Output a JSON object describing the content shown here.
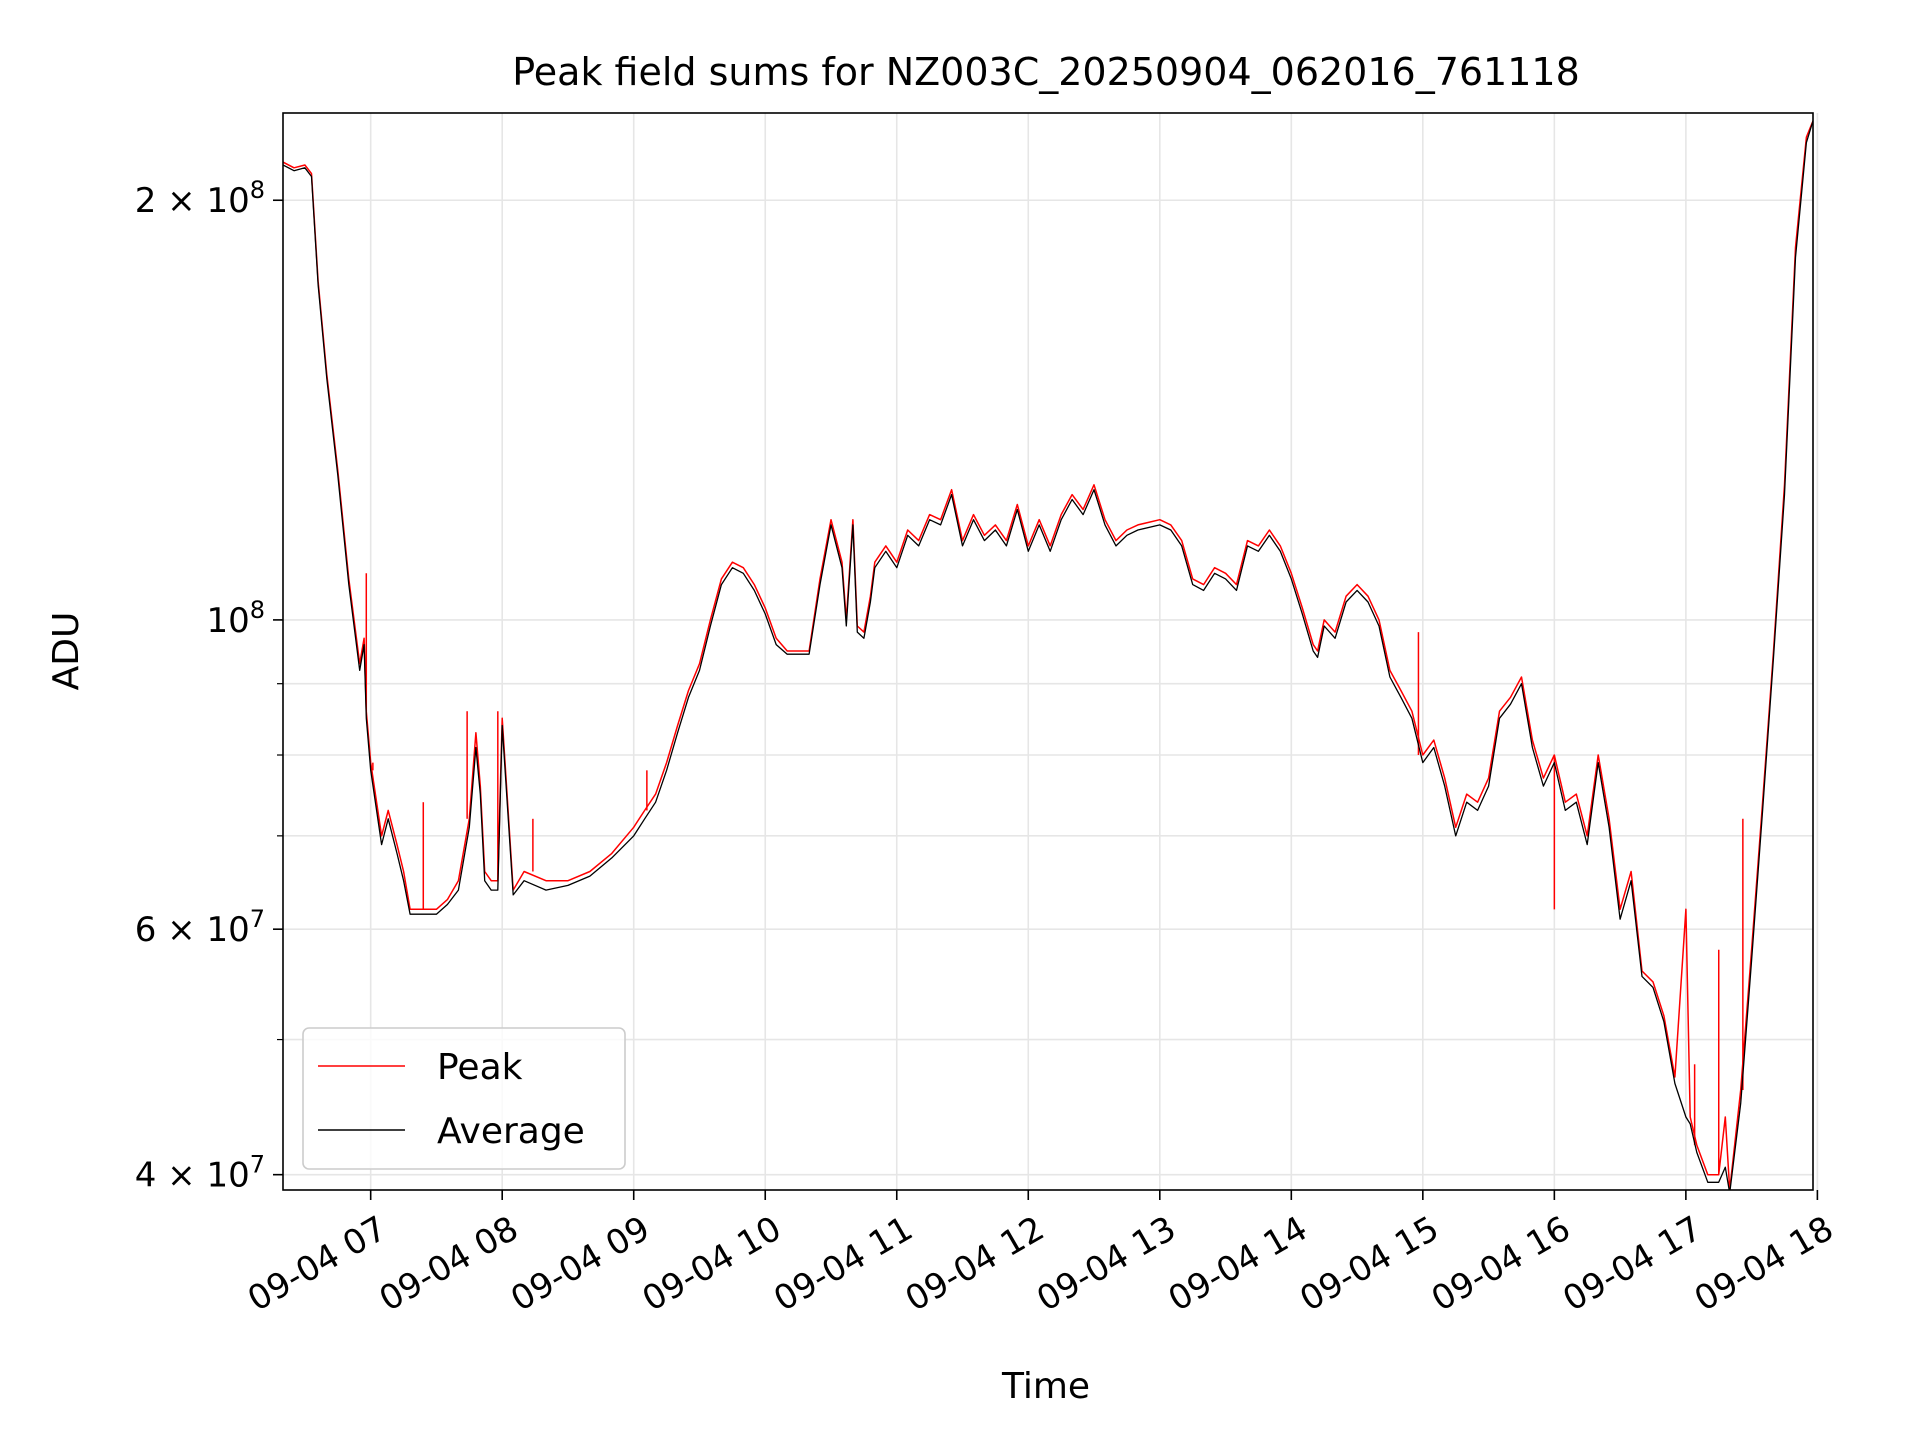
{
  "chart_data": {
    "type": "line",
    "title": "Peak field sums for NZ003C_20250904_062016_761118",
    "xlabel": "Time",
    "ylabel": "ADU",
    "yscale": "log",
    "xlim": [
      "2025-09-04 06:20",
      "2025-09-04 17:58"
    ],
    "ylim": [
      39000000,
      231000000
    ],
    "grid": true,
    "legend": "lower-left",
    "x_ticks": [
      {
        "t": "2025-09-04 07:00",
        "label": "09-04 07"
      },
      {
        "t": "2025-09-04 08:00",
        "label": "09-04 08"
      },
      {
        "t": "2025-09-04 09:00",
        "label": "09-04 09"
      },
      {
        "t": "2025-09-04 10:00",
        "label": "09-04 10"
      },
      {
        "t": "2025-09-04 11:00",
        "label": "09-04 11"
      },
      {
        "t": "2025-09-04 12:00",
        "label": "09-04 12"
      },
      {
        "t": "2025-09-04 13:00",
        "label": "09-04 13"
      },
      {
        "t": "2025-09-04 14:00",
        "label": "09-04 14"
      },
      {
        "t": "2025-09-04 15:00",
        "label": "09-04 15"
      },
      {
        "t": "2025-09-04 16:00",
        "label": "09-04 16"
      },
      {
        "t": "2025-09-04 17:00",
        "label": "09-04 17"
      },
      {
        "t": "2025-09-04 18:00",
        "label": "09-04 18"
      }
    ],
    "y_major_ticks": [
      {
        "value": 40000000,
        "mantissa": "4",
        "exponent": "7"
      },
      {
        "value": 60000000,
        "mantissa": "6",
        "exponent": "7"
      },
      {
        "value": 100000000,
        "mantissa": "",
        "exponent": "8"
      },
      {
        "value": 200000000,
        "mantissa": "2",
        "exponent": "8"
      }
    ],
    "y_minor_ticks": [
      50000000,
      70000000,
      80000000,
      90000000
    ],
    "series": [
      {
        "name": "Peak",
        "color": "#ff0000",
        "x": [
          "06:20",
          "06:25",
          "06:30",
          "06:33",
          "06:36",
          "06:40",
          "06:45",
          "06:50",
          "06:55",
          "06:57",
          "06:58",
          "07:00",
          "07:05",
          "07:08",
          "07:12",
          "07:15",
          "07:18",
          "07:25",
          "07:30",
          "07:35",
          "07:40",
          "07:45",
          "07:48",
          "07:50",
          "07:52",
          "07:55",
          "07:58",
          "08:00",
          "08:05",
          "08:10",
          "08:20",
          "08:30",
          "08:40",
          "08:50",
          "09:00",
          "09:05",
          "09:10",
          "09:15",
          "09:20",
          "09:25",
          "09:30",
          "09:35",
          "09:40",
          "09:45",
          "09:50",
          "09:55",
          "10:00",
          "10:05",
          "10:10",
          "10:15",
          "10:20",
          "10:25",
          "10:30",
          "10:35",
          "10:37",
          "10:40",
          "10:42",
          "10:45",
          "10:48",
          "10:50",
          "10:55",
          "11:00",
          "11:05",
          "11:10",
          "11:15",
          "11:20",
          "11:25",
          "11:30",
          "11:35",
          "11:40",
          "11:45",
          "11:50",
          "11:55",
          "12:00",
          "12:05",
          "12:10",
          "12:15",
          "12:20",
          "12:25",
          "12:30",
          "12:35",
          "12:40",
          "12:45",
          "12:50",
          "13:00",
          "13:05",
          "13:10",
          "13:15",
          "13:20",
          "13:25",
          "13:30",
          "13:35",
          "13:40",
          "13:45",
          "13:50",
          "13:55",
          "14:00",
          "14:05",
          "14:10",
          "14:12",
          "14:15",
          "14:20",
          "14:25",
          "14:30",
          "14:35",
          "14:40",
          "14:45",
          "14:50",
          "14:55",
          "15:00",
          "15:05",
          "15:10",
          "15:15",
          "15:20",
          "15:25",
          "15:30",
          "15:35",
          "15:40",
          "15:45",
          "15:50",
          "15:55",
          "16:00",
          "16:05",
          "16:10",
          "16:15",
          "16:20",
          "16:25",
          "16:30",
          "16:35",
          "16:40",
          "16:45",
          "16:50",
          "16:55",
          "17:00",
          "17:02",
          "17:05",
          "17:10",
          "17:15",
          "17:18",
          "17:20",
          "17:25",
          "17:30",
          "17:35",
          "17:40",
          "17:45",
          "17:50",
          "17:55",
          "17:58"
        ],
        "y": [
          213000000,
          211000000,
          212000000,
          209000000,
          175000000,
          150000000,
          128000000,
          107000000,
          93000000,
          97000000,
          86000000,
          79000000,
          70000000,
          73000000,
          69000000,
          66000000,
          62000000,
          62000000,
          62000000,
          63000000,
          65000000,
          72000000,
          83000000,
          76000000,
          66000000,
          65000000,
          65000000,
          85000000,
          64000000,
          66000000,
          65000000,
          65000000,
          66000000,
          68000000,
          71000000,
          73000000,
          75000000,
          79000000,
          84000000,
          89000000,
          93000000,
          100000000,
          107000000,
          110000000,
          109000000,
          106000000,
          102000000,
          97000000,
          95000000,
          95000000,
          95000000,
          107000000,
          118000000,
          110000000,
          100000000,
          118000000,
          99000000,
          98000000,
          104000000,
          110000000,
          113000000,
          110000000,
          116000000,
          114000000,
          119000000,
          118000000,
          124000000,
          114000000,
          119000000,
          115000000,
          117000000,
          114000000,
          121000000,
          113000000,
          118000000,
          113000000,
          119000000,
          123000000,
          120000000,
          125000000,
          118000000,
          114000000,
          116000000,
          117000000,
          118000000,
          117000000,
          114000000,
          107000000,
          106000000,
          109000000,
          108000000,
          106000000,
          114000000,
          113000000,
          116000000,
          113000000,
          108000000,
          102000000,
          96000000,
          95000000,
          100000000,
          98000000,
          104000000,
          106000000,
          104000000,
          100000000,
          92000000,
          89000000,
          86000000,
          80000000,
          82000000,
          77000000,
          71000000,
          75000000,
          74000000,
          77000000,
          86000000,
          88000000,
          91000000,
          82000000,
          77000000,
          80000000,
          74000000,
          75000000,
          70000000,
          80000000,
          72000000,
          62000000,
          66000000,
          56000000,
          55000000,
          52000000,
          47000000,
          62000000,
          44000000,
          42000000,
          40000000,
          40000000,
          44000000,
          39000000,
          46000000,
          58000000,
          74000000,
          95000000,
          125000000,
          185000000,
          222000000,
          228000000
        ],
        "spikes": [
          {
            "x": "06:58",
            "y": 108000000
          },
          {
            "x": "07:01",
            "y": 78000000
          },
          {
            "x": "07:24",
            "y": 74000000
          },
          {
            "x": "07:44",
            "y": 86000000
          },
          {
            "x": "07:58",
            "y": 86000000
          },
          {
            "x": "08:02",
            "y": 85000000
          },
          {
            "x": "08:14",
            "y": 72000000
          },
          {
            "x": "09:06",
            "y": 78000000
          },
          {
            "x": "14:58",
            "y": 98000000
          },
          {
            "x": "16:00",
            "y": 62000000
          },
          {
            "x": "17:04",
            "y": 48000000
          },
          {
            "x": "17:15",
            "y": 58000000
          },
          {
            "x": "17:26",
            "y": 72000000
          },
          {
            "x": "17:47",
            "y": 125000000
          }
        ]
      },
      {
        "name": "Average",
        "color": "#000000",
        "x": [
          "06:20",
          "06:25",
          "06:30",
          "06:33",
          "06:36",
          "06:40",
          "06:45",
          "06:50",
          "06:55",
          "06:57",
          "06:58",
          "07:00",
          "07:05",
          "07:08",
          "07:12",
          "07:15",
          "07:18",
          "07:25",
          "07:30",
          "07:35",
          "07:40",
          "07:45",
          "07:48",
          "07:50",
          "07:52",
          "07:55",
          "07:58",
          "08:00",
          "08:05",
          "08:10",
          "08:20",
          "08:30",
          "08:40",
          "08:50",
          "09:00",
          "09:05",
          "09:10",
          "09:15",
          "09:20",
          "09:25",
          "09:30",
          "09:35",
          "09:40",
          "09:45",
          "09:50",
          "09:55",
          "10:00",
          "10:05",
          "10:10",
          "10:15",
          "10:20",
          "10:25",
          "10:30",
          "10:35",
          "10:37",
          "10:40",
          "10:42",
          "10:45",
          "10:48",
          "10:50",
          "10:55",
          "11:00",
          "11:05",
          "11:10",
          "11:15",
          "11:20",
          "11:25",
          "11:30",
          "11:35",
          "11:40",
          "11:45",
          "11:50",
          "11:55",
          "12:00",
          "12:05",
          "12:10",
          "12:15",
          "12:20",
          "12:25",
          "12:30",
          "12:35",
          "12:40",
          "12:45",
          "12:50",
          "13:00",
          "13:05",
          "13:10",
          "13:15",
          "13:20",
          "13:25",
          "13:30",
          "13:35",
          "13:40",
          "13:45",
          "13:50",
          "13:55",
          "14:00",
          "14:05",
          "14:10",
          "14:12",
          "14:15",
          "14:20",
          "14:25",
          "14:30",
          "14:35",
          "14:40",
          "14:45",
          "14:50",
          "14:55",
          "15:00",
          "15:05",
          "15:10",
          "15:15",
          "15:20",
          "15:25",
          "15:30",
          "15:35",
          "15:40",
          "15:45",
          "15:50",
          "15:55",
          "16:00",
          "16:05",
          "16:10",
          "16:15",
          "16:20",
          "16:25",
          "16:30",
          "16:35",
          "16:40",
          "16:45",
          "16:50",
          "16:55",
          "17:00",
          "17:02",
          "17:05",
          "17:10",
          "17:15",
          "17:18",
          "17:20",
          "17:25",
          "17:30",
          "17:35",
          "17:40",
          "17:45",
          "17:50",
          "17:55",
          "17:58"
        ],
        "y": [
          212000000,
          210000000,
          211000000,
          208000000,
          174000000,
          149000000,
          127000000,
          106000000,
          92000000,
          96000000,
          85000000,
          78000000,
          69000000,
          72000000,
          68000000,
          65000000,
          61500000,
          61500000,
          61500000,
          62500000,
          64000000,
          71000000,
          81000000,
          75000000,
          65000000,
          64000000,
          64000000,
          84000000,
          63500000,
          65000000,
          64000000,
          64500000,
          65500000,
          67500000,
          70000000,
          72000000,
          74000000,
          78000000,
          83000000,
          88000000,
          92000000,
          99000000,
          106000000,
          109000000,
          108000000,
          105000000,
          101000000,
          96000000,
          94500000,
          94500000,
          94500000,
          106000000,
          117000000,
          109000000,
          99000000,
          117000000,
          98000000,
          97000000,
          103000000,
          109000000,
          112000000,
          109000000,
          115000000,
          113000000,
          118000000,
          117000000,
          123000000,
          113000000,
          118000000,
          114000000,
          116000000,
          113000000,
          120000000,
          112000000,
          117000000,
          112000000,
          118000000,
          122000000,
          119000000,
          124000000,
          117000000,
          113000000,
          115000000,
          116000000,
          117000000,
          116000000,
          113000000,
          106000000,
          105000000,
          108000000,
          107000000,
          105000000,
          113000000,
          112000000,
          115000000,
          112000000,
          107000000,
          101000000,
          95000000,
          94000000,
          99000000,
          97000000,
          103000000,
          105000000,
          103000000,
          99000000,
          91000000,
          88000000,
          85000000,
          79000000,
          81000000,
          76000000,
          70000000,
          74000000,
          73000000,
          76000000,
          85000000,
          87000000,
          90000000,
          81000000,
          76000000,
          79000000,
          73000000,
          74000000,
          69000000,
          79000000,
          71000000,
          61000000,
          65000000,
          55500000,
          54500000,
          51500000,
          46500000,
          44000000,
          43500000,
          41500000,
          39500000,
          39500000,
          40500000,
          38800000,
          45000000,
          57000000,
          73000000,
          94000000,
          123000000,
          182000000,
          220000000,
          228000000
        ]
      }
    ]
  }
}
